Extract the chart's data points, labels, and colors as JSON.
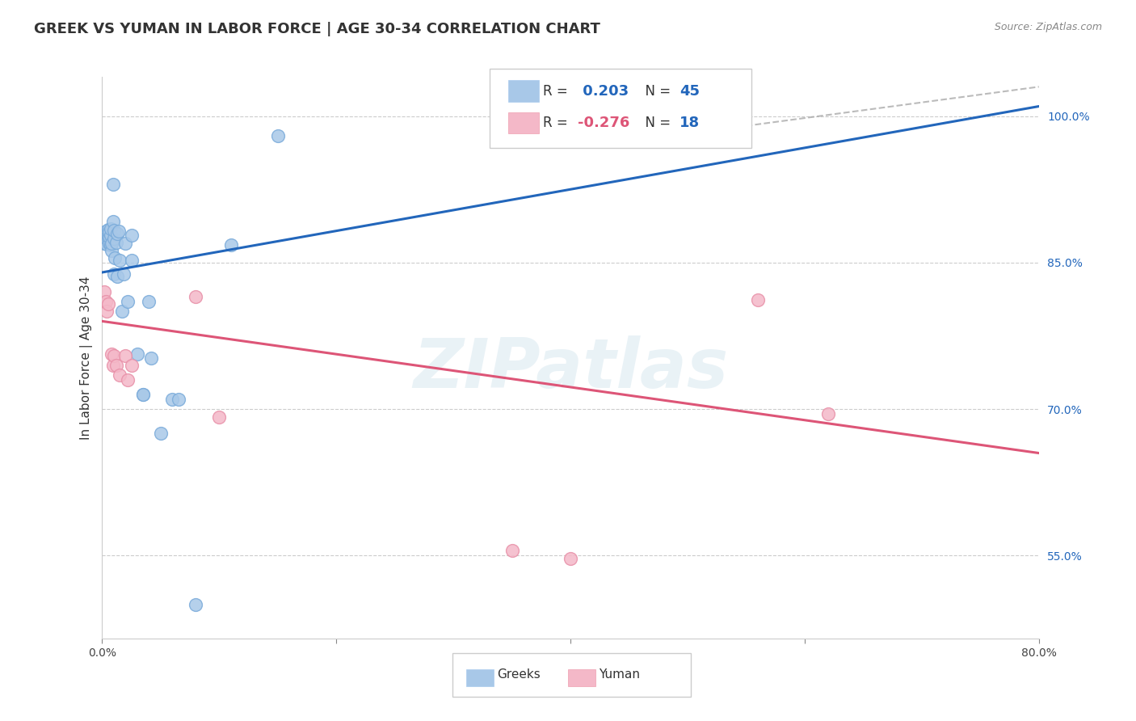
{
  "title": "GREEK VS YUMAN IN LABOR FORCE | AGE 30-34 CORRELATION CHART",
  "source": "Source: ZipAtlas.com",
  "ylabel": "In Labor Force | Age 30-34",
  "xlim": [
    0.0,
    0.8
  ],
  "ylim": [
    0.465,
    1.04
  ],
  "xticks": [
    0.0,
    0.2,
    0.4,
    0.6,
    0.8
  ],
  "xtick_labels": [
    "0.0%",
    "",
    "",
    "",
    "80.0%"
  ],
  "yticks": [
    0.55,
    0.7,
    0.85,
    1.0
  ],
  "ytick_labels": [
    "55.0%",
    "70.0%",
    "85.0%",
    "100.0%"
  ],
  "greek_R": 0.203,
  "greek_N": 45,
  "yuman_R": -0.276,
  "yuman_N": 18,
  "greek_color": "#a8c8e8",
  "greek_edge_color": "#7aabda",
  "yuman_color": "#f4b8c8",
  "yuman_edge_color": "#e890a8",
  "greek_line_color": "#2266bb",
  "yuman_line_color": "#dd5577",
  "background_color": "#ffffff",
  "greek_x": [
    0.002,
    0.003,
    0.003,
    0.004,
    0.004,
    0.004,
    0.005,
    0.005,
    0.005,
    0.006,
    0.006,
    0.006,
    0.007,
    0.007,
    0.007,
    0.008,
    0.008,
    0.009,
    0.009,
    0.01,
    0.01,
    0.01,
    0.011,
    0.012,
    0.013,
    0.013,
    0.014,
    0.015,
    0.017,
    0.018,
    0.02,
    0.022,
    0.025,
    0.025,
    0.03,
    0.035,
    0.035,
    0.04,
    0.042,
    0.05,
    0.06,
    0.065,
    0.08,
    0.11,
    0.15
  ],
  "greek_y": [
    0.87,
    0.875,
    0.882,
    0.869,
    0.875,
    0.88,
    0.875,
    0.879,
    0.884,
    0.87,
    0.876,
    0.881,
    0.868,
    0.878,
    0.885,
    0.862,
    0.87,
    0.892,
    0.93,
    0.838,
    0.875,
    0.883,
    0.855,
    0.871,
    0.836,
    0.88,
    0.882,
    0.852,
    0.8,
    0.838,
    0.87,
    0.81,
    0.852,
    0.878,
    0.756,
    0.715,
    0.715,
    0.81,
    0.752,
    0.675,
    0.71,
    0.71,
    0.5,
    0.868,
    0.98
  ],
  "yuman_x": [
    0.002,
    0.003,
    0.004,
    0.005,
    0.008,
    0.009,
    0.01,
    0.012,
    0.015,
    0.02,
    0.022,
    0.025,
    0.08,
    0.1,
    0.35,
    0.4,
    0.56,
    0.62
  ],
  "yuman_y": [
    0.82,
    0.81,
    0.8,
    0.808,
    0.756,
    0.745,
    0.755,
    0.745,
    0.735,
    0.755,
    0.73,
    0.745,
    0.815,
    0.692,
    0.555,
    0.547,
    0.812,
    0.695
  ],
  "greek_line_x0": 0.0,
  "greek_line_y0": 0.84,
  "greek_line_x1": 0.8,
  "greek_line_y1": 1.01,
  "yuman_line_x0": 0.0,
  "yuman_line_y0": 0.79,
  "yuman_line_x1": 0.8,
  "yuman_line_y1": 0.655,
  "dash_line_x0": 0.55,
  "dash_line_y0": 0.99,
  "dash_line_x1": 0.8,
  "dash_line_y1": 1.03,
  "marker_size": 130,
  "title_fontsize": 13,
  "axis_label_fontsize": 11,
  "tick_fontsize": 10,
  "watermark": "ZIPatlas"
}
